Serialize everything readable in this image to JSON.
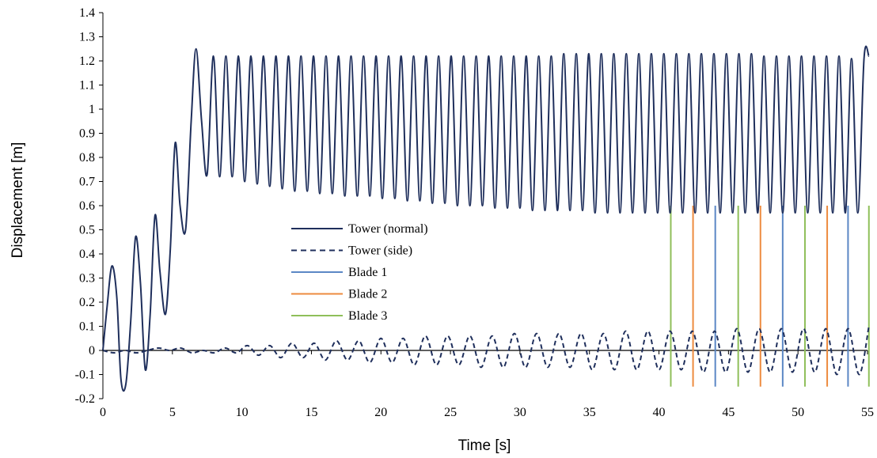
{
  "chart_data": {
    "type": "line",
    "title": "",
    "xlabel": "Time [s]",
    "ylabel": "Displacement [m]",
    "xlim": [
      0,
      55
    ],
    "ylim": [
      -0.2,
      1.4
    ],
    "xticks": [
      0,
      5,
      10,
      15,
      20,
      25,
      30,
      35,
      40,
      45,
      50,
      55
    ],
    "yticks": [
      -0.2,
      -0.1,
      0,
      0.1,
      0.2,
      0.3,
      0.4,
      0.5,
      0.6,
      0.7,
      0.8,
      0.9,
      1,
      1.1,
      1.2,
      1.3,
      1.4
    ],
    "ytick_labels": [
      "-0.2",
      "-0.1",
      "0",
      "0.1",
      "0.2",
      "0.3",
      "0.4",
      "0.5",
      "0.6",
      "0.7",
      "0.8",
      "0.9",
      "1",
      "1.1",
      "1.2",
      "1.3",
      "1.4"
    ],
    "grid": false,
    "legend_position": "center",
    "series": [
      {
        "name": "Tower (normal)",
        "color": "#1f2f5c",
        "style": "solid",
        "x": [
          0,
          0.3,
          0.65,
          1.0,
          1.3,
          1.65,
          2.0,
          2.35,
          2.7,
          3.05,
          3.4,
          3.75,
          4.1,
          4.5,
          4.85,
          5.2,
          5.55,
          5.95,
          6.35,
          6.7,
          7.1,
          7.5,
          7.95,
          8.4,
          8.85,
          9.3,
          9.75,
          10.2,
          10.65,
          11.1,
          11.55,
          12.0,
          12.45,
          12.9,
          13.35,
          13.8,
          14.25,
          14.7,
          15.15,
          15.6,
          16.05,
          16.5,
          16.95,
          17.4,
          17.85,
          18.3,
          18.75,
          19.2,
          19.65,
          20.1,
          20.55,
          21.0,
          21.45,
          21.9,
          22.35,
          22.8,
          23.25,
          23.7,
          24.15,
          24.6,
          25.05,
          25.5,
          25.95,
          26.4,
          26.85,
          27.3,
          27.75,
          28.2,
          28.65,
          29.1,
          29.55,
          30.0,
          30.45,
          30.9,
          31.35,
          31.8,
          32.25,
          32.7,
          33.15,
          33.6,
          34.05,
          34.5,
          34.95,
          35.4,
          35.85,
          36.3,
          36.75,
          37.2,
          37.65,
          38.1,
          38.55,
          39.0,
          39.45,
          39.9,
          40.35,
          40.8,
          41.25,
          41.7,
          42.15,
          42.6,
          43.05,
          43.5,
          43.95,
          44.4,
          44.85,
          45.3,
          45.75,
          46.2,
          46.65,
          47.1,
          47.55,
          48.0,
          48.45,
          48.9,
          49.35,
          49.8,
          50.25,
          50.7,
          51.15,
          51.6,
          52.05,
          52.5,
          52.95,
          53.4,
          53.85,
          54.3,
          54.75,
          55.1
        ],
        "y": [
          0,
          0.18,
          0.35,
          0.22,
          -0.12,
          -0.14,
          0.12,
          0.47,
          0.28,
          -0.08,
          0.15,
          0.56,
          0.33,
          0.15,
          0.42,
          0.86,
          0.6,
          0.5,
          0.95,
          1.25,
          0.95,
          0.73,
          1.22,
          0.72,
          1.22,
          0.72,
          1.22,
          0.7,
          1.22,
          0.69,
          1.22,
          0.68,
          1.22,
          0.67,
          1.22,
          0.66,
          1.22,
          0.66,
          1.22,
          0.65,
          1.22,
          0.65,
          1.22,
          0.64,
          1.22,
          0.64,
          1.22,
          0.64,
          1.22,
          0.63,
          1.22,
          0.63,
          1.22,
          0.62,
          1.22,
          0.62,
          1.22,
          0.61,
          1.22,
          0.61,
          1.22,
          0.6,
          1.22,
          0.6,
          1.22,
          0.6,
          1.22,
          0.59,
          1.22,
          0.59,
          1.22,
          0.59,
          1.22,
          0.58,
          1.22,
          0.58,
          1.22,
          0.58,
          1.23,
          0.58,
          1.23,
          0.58,
          1.23,
          0.57,
          1.23,
          0.57,
          1.23,
          0.57,
          1.23,
          0.57,
          1.23,
          0.57,
          1.23,
          0.57,
          1.23,
          0.57,
          1.23,
          0.57,
          1.23,
          0.57,
          1.23,
          0.57,
          1.23,
          0.57,
          1.23,
          0.57,
          1.23,
          0.57,
          1.23,
          0.57,
          1.22,
          0.57,
          1.22,
          0.57,
          1.22,
          0.57,
          1.22,
          0.57,
          1.22,
          0.57,
          1.22,
          0.57,
          1.22,
          0.57,
          1.21,
          0.57,
          1.21,
          1.22
        ]
      },
      {
        "name": "Tower (side)",
        "color": "#1f2f5c",
        "style": "dashed",
        "x": [
          0,
          0.8,
          1.6,
          2.4,
          3.2,
          4.0,
          4.8,
          5.6,
          6.4,
          7.2,
          8.0,
          8.8,
          9.6,
          10.4,
          11.2,
          12.0,
          12.8,
          13.6,
          14.4,
          15.2,
          16.0,
          16.8,
          17.6,
          18.4,
          19.2,
          20.0,
          20.8,
          21.6,
          22.4,
          23.2,
          24.0,
          24.8,
          25.6,
          26.4,
          27.2,
          28.0,
          28.8,
          29.6,
          30.4,
          31.2,
          32.0,
          32.8,
          33.6,
          34.4,
          35.2,
          36.0,
          36.8,
          37.6,
          38.4,
          39.2,
          40.0,
          40.8,
          41.6,
          42.4,
          43.2,
          44.0,
          44.8,
          45.6,
          46.4,
          47.2,
          48.0,
          48.8,
          49.6,
          50.4,
          51.2,
          52.0,
          52.8,
          53.6,
          54.4,
          55.1
        ],
        "y": [
          0,
          -0.01,
          0.0,
          -0.01,
          0.0,
          0.01,
          0.0,
          0.01,
          -0.01,
          0.0,
          -0.01,
          0.01,
          -0.01,
          0.02,
          -0.02,
          0.02,
          -0.03,
          0.03,
          -0.03,
          0.03,
          -0.04,
          0.04,
          -0.04,
          0.04,
          -0.05,
          0.05,
          -0.05,
          0.05,
          -0.06,
          0.06,
          -0.06,
          0.06,
          -0.06,
          0.06,
          -0.07,
          0.06,
          -0.07,
          0.07,
          -0.07,
          0.07,
          -0.07,
          0.07,
          -0.07,
          0.07,
          -0.08,
          0.07,
          -0.08,
          0.08,
          -0.08,
          0.08,
          -0.08,
          0.08,
          -0.08,
          0.08,
          -0.09,
          0.08,
          -0.09,
          0.09,
          -0.09,
          0.09,
          -0.09,
          0.09,
          -0.09,
          0.09,
          -0.09,
          0.09,
          -0.1,
          0.09,
          -0.1,
          0.1
        ]
      }
    ],
    "event_lines": [
      {
        "name": "Blade 1",
        "color": "#5b87c5",
        "ymin": -0.15,
        "ymax": 0.6,
        "x": [
          44.05,
          48.9,
          53.6
        ]
      },
      {
        "name": "Blade 2",
        "color": "#ed8b3f",
        "ymin": -0.15,
        "ymax": 0.6,
        "x": [
          42.45,
          47.3,
          52.1
        ]
      },
      {
        "name": "Blade 3",
        "color": "#8fbf5a",
        "ymin": -0.15,
        "ymax": 0.6,
        "x": [
          40.85,
          45.7,
          50.5,
          55.1
        ]
      }
    ],
    "legend": [
      {
        "label": "Tower (normal)",
        "color": "#1f2f5c",
        "style": "solid"
      },
      {
        "label": "Tower (side)",
        "color": "#1f2f5c",
        "style": "dashed"
      },
      {
        "label": "Blade 1",
        "color": "#5b87c5",
        "style": "solid"
      },
      {
        "label": "Blade 2",
        "color": "#ed8b3f",
        "style": "solid"
      },
      {
        "label": "Blade 3",
        "color": "#8fbf5a",
        "style": "solid"
      }
    ]
  }
}
